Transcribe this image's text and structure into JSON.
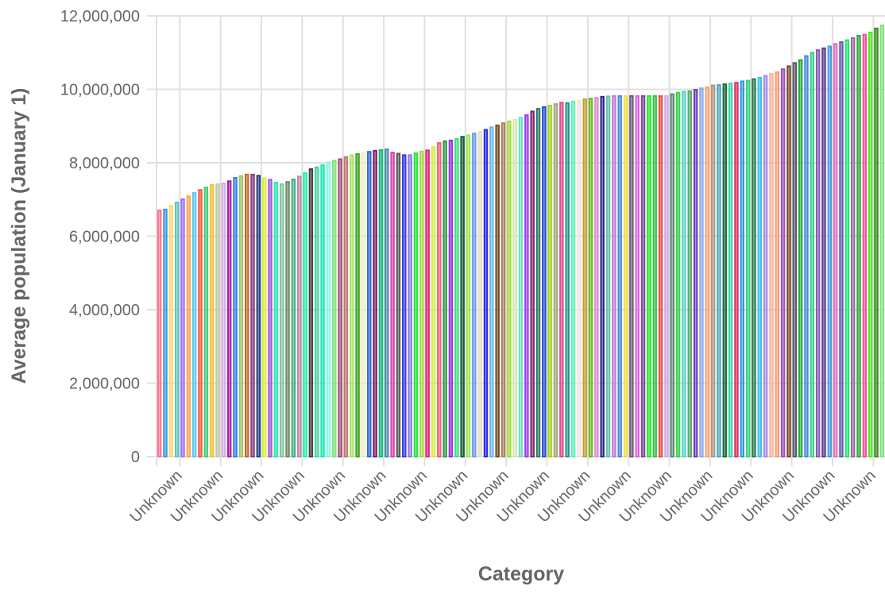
{
  "chart_data": {
    "type": "bar",
    "xlabel": "Category",
    "ylabel": "Average population (January 1)",
    "ylim": [
      0,
      12000000
    ],
    "yticks": [
      "0",
      "2,000,000",
      "4,000,000",
      "6,000,000",
      "8,000,000",
      "10,000,000",
      "12,000,000"
    ],
    "ytick_values": [
      0,
      2000000,
      4000000,
      6000000,
      8000000,
      10000000,
      12000000
    ],
    "grid": true,
    "legend": "none",
    "x_tick_label": "Unknown",
    "x_tick_every": 7,
    "x_tick_first_index": 4,
    "values": [
      6720000,
      6750000,
      6850000,
      6940000,
      7030000,
      7110000,
      7200000,
      7280000,
      7350000,
      7420000,
      7440000,
      7460000,
      7520000,
      7610000,
      7660000,
      7700000,
      7700000,
      7670000,
      7600000,
      7560000,
      7480000,
      7440000,
      7500000,
      7570000,
      7650000,
      7740000,
      7850000,
      7900000,
      7960000,
      8030000,
      8080000,
      8120000,
      8180000,
      8230000,
      8260000,
      8280000,
      8320000,
      8350000,
      8370000,
      8390000,
      8300000,
      8270000,
      8230000,
      8230000,
      8280000,
      8330000,
      8360000,
      8450000,
      8560000,
      8610000,
      8630000,
      8670000,
      8730000,
      8770000,
      8820000,
      8860000,
      8920000,
      8990000,
      9040000,
      9100000,
      9150000,
      9190000,
      9250000,
      9320000,
      9420000,
      9490000,
      9540000,
      9580000,
      9620000,
      9660000,
      9650000,
      9690000,
      9710000,
      9750000,
      9770000,
      9790000,
      9820000,
      9830000,
      9840000,
      9840000,
      9840000,
      9840000,
      9840000,
      9840000,
      9840000,
      9840000,
      9840000,
      9840000,
      9890000,
      9930000,
      9960000,
      9970000,
      10010000,
      10050000,
      10080000,
      10130000,
      10140000,
      10160000,
      10180000,
      10200000,
      10240000,
      10260000,
      10300000,
      10340000,
      10390000,
      10440000,
      10490000,
      10570000,
      10650000,
      10740000,
      10820000,
      10930000,
      11020000,
      11090000,
      11140000,
      11190000,
      11260000,
      11310000,
      11360000,
      11420000,
      11480000,
      11510000,
      11570000,
      11680000,
      11760000
    ],
    "colors": [
      "#ff6f91",
      "#3399e6",
      "#ffd86b",
      "#5ec4c4",
      "#a070ff",
      "#ffa64d",
      "#5cc8f5",
      "#ff5533",
      "#3ecf7a",
      "#f2c12e",
      "#c2c7a8",
      "#d6a8ec",
      "#b01ca8",
      "#2b7ff0",
      "#9bc46a",
      "#c0692a",
      "#8a3a7a",
      "#1f3f7a",
      "#d8f03a",
      "#a05ad2",
      "#2ee6b0",
      "#7cc9a0",
      "#6d8f5a",
      "#3ab08a",
      "#c08aa0",
      "#1ef0a8",
      "#4a3a3e",
      "#3ed6a0",
      "#1ee8b4",
      "#8af0ea",
      "#7ee67a",
      "#a04e7a",
      "#c07a6a",
      "#9ce86a",
      "#3aa81e",
      "#f0eec0",
      "#2e6ad6",
      "#7a1a6a",
      "#14b87a",
      "#4a8aa8",
      "#e040b0",
      "#505858",
      "#3a3ae0",
      "#8a7ae8",
      "#1ee83a",
      "#9ae03a",
      "#e8207a",
      "#d6f03a",
      "#f0607a",
      "#2a9a4a",
      "#9a2ae8",
      "#3ae07a",
      "#1a5a3a",
      "#9ae850",
      "#6a9af0",
      "#e0e0c0",
      "#2a2ae8",
      "#6ab8f0",
      "#7a4a1a",
      "#b07a60",
      "#a0e03a",
      "#d6e8b0",
      "#6ae0c0",
      "#a03af0",
      "#7a2a6a",
      "#2a7a6a",
      "#2a4ad6",
      "#a0d61e",
      "#a0a87a",
      "#e04a8a",
      "#1a9a8a",
      "#5af0b0",
      "#f8e0e0",
      "#c0a030",
      "#6ab81e",
      "#e08ad0",
      "#2a2a8a",
      "#6ac0a8",
      "#c07ad0",
      "#4a8ae0",
      "#f0e040",
      "#6a5a7a",
      "#e060e0",
      "#7a4a9a",
      "#1ee81e",
      "#3ac04a",
      "#f04a3a",
      "#d0a8f0",
      "#5a8a6a",
      "#3ad04a",
      "#5ad0d0",
      "#5aa86a",
      "#6a3ac0",
      "#8aaaf0",
      "#ffa070",
      "#b0987a",
      "#4aa8c0",
      "#1a6a3a",
      "#3ad6a8",
      "#e0306a",
      "#2a9ae0",
      "#3ad07a",
      "#2a7a4a",
      "#3ac0f0",
      "#a08af0",
      "#ffb09a",
      "#ff9a6a",
      "#a050c0",
      "#7a4a2a",
      "#5a5a6a",
      "#1ea83a",
      "#4a8ae0",
      "#3ad08a",
      "#8a5ab8",
      "#5a3a8a",
      "#4a9ae0",
      "#e070c0",
      "#6a5ab8",
      "#1ee86a",
      "#9a6a9a",
      "#2aa83a",
      "#ff4aa0",
      "#4af01e",
      "#3a8a1e",
      "#7ae87a"
    ],
    "grid_color": "#e0e0e0",
    "text_color": "#666666"
  }
}
